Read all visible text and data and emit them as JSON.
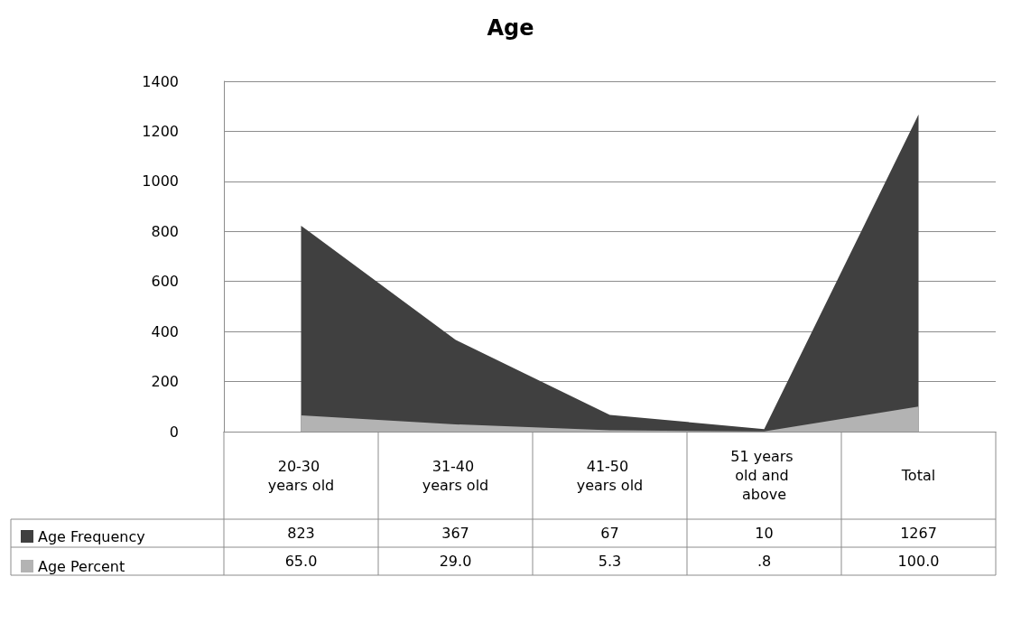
{
  "chart_data": {
    "type": "area",
    "title": "Age",
    "categories": [
      "20-30 years old",
      "31-40 years old",
      "41-50 years old",
      "51 years old and above",
      "Total"
    ],
    "series": [
      {
        "name": "Age Frequency",
        "color": "#404040",
        "values": [
          823,
          367,
          67,
          10,
          1267
        ],
        "value_labels": [
          "823",
          "367",
          "67",
          "10",
          "1267"
        ]
      },
      {
        "name": "Age Percent",
        "color": "#b3b3b3",
        "values": [
          65.0,
          29.0,
          5.3,
          0.8,
          100.0
        ],
        "value_labels": [
          "65.0",
          "29.0",
          "5.3",
          ".8",
          "100.0"
        ]
      }
    ],
    "ylim": [
      0,
      1400
    ],
    "yticks": [
      0,
      200,
      400,
      600,
      800,
      1000,
      1200,
      1400
    ],
    "grid": "y",
    "legend": "bottom left"
  }
}
